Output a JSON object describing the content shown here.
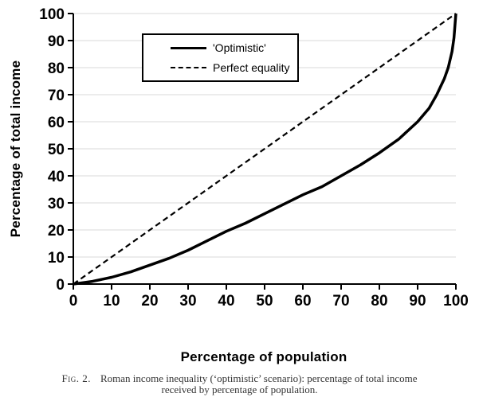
{
  "figure": {
    "caption_label": "Fig. 2.",
    "caption_text": "Roman income inequality (‘optimistic’ scenario): percentage of total income received by percentage of population."
  },
  "chart_data": {
    "type": "line",
    "title": "",
    "xlabel": "Percentage of population",
    "ylabel": "Percentage of total income",
    "xlim": [
      0,
      100
    ],
    "ylim": [
      0,
      100
    ],
    "x_ticks": [
      0,
      10,
      20,
      30,
      40,
      50,
      60,
      70,
      80,
      90,
      100
    ],
    "y_ticks": [
      0,
      10,
      20,
      30,
      40,
      50,
      60,
      70,
      80,
      90,
      100
    ],
    "grid": "horizontal-major",
    "legend_position": "inside-upper-left",
    "colors": {
      "line": "#000000",
      "grid": "#d9d9d9",
      "background": "#ffffff"
    },
    "series": [
      {
        "name": "'Optimistic'",
        "style": "solid",
        "points": [
          [
            0,
            0
          ],
          [
            5,
            1
          ],
          [
            10,
            2.5
          ],
          [
            15,
            4.5
          ],
          [
            20,
            7
          ],
          [
            25,
            9.5
          ],
          [
            30,
            12.5
          ],
          [
            35,
            16
          ],
          [
            40,
            19.5
          ],
          [
            45,
            22.5
          ],
          [
            50,
            26
          ],
          [
            55,
            29.5
          ],
          [
            60,
            33
          ],
          [
            65,
            36
          ],
          [
            70,
            40
          ],
          [
            75,
            44
          ],
          [
            80,
            48.5
          ],
          [
            85,
            53.5
          ],
          [
            90,
            60
          ],
          [
            93,
            65
          ],
          [
            95,
            70
          ],
          [
            97,
            76
          ],
          [
            98,
            80
          ],
          [
            99,
            86
          ],
          [
            99.5,
            91
          ],
          [
            100,
            100
          ]
        ]
      },
      {
        "name": "Perfect equality",
        "style": "dashed",
        "points": [
          [
            0,
            0
          ],
          [
            100,
            100
          ]
        ]
      }
    ]
  }
}
